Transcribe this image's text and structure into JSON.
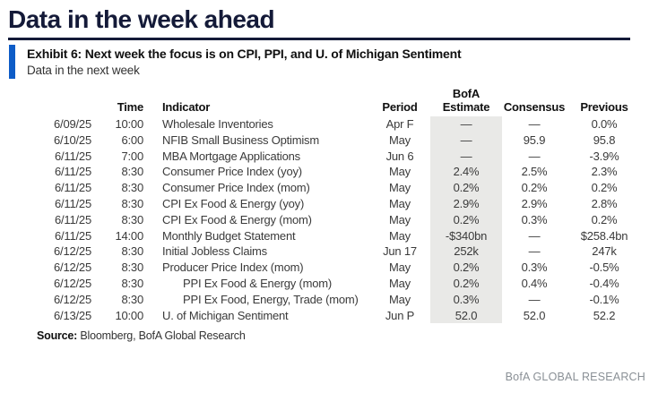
{
  "page": {
    "title": "Data in the week ahead",
    "brand_footer": "BofA GLOBAL RESEARCH"
  },
  "exhibit": {
    "title": "Exhibit 6: Next week the focus is on CPI, PPI, and U. of Michigan Sentiment",
    "subtitle": "Data in the next week"
  },
  "colors": {
    "title_navy": "#141a38",
    "accent_blue": "#0d5cc7",
    "estimate_column_bg": "#e9e9e7",
    "brand_gray": "#8a9096"
  },
  "table": {
    "headers": {
      "date": "",
      "time": "Time",
      "indicator": "Indicator",
      "period": "Period",
      "estimate_line1": "BofA",
      "estimate_line2": "Estimate",
      "consensus": "Consensus",
      "previous": "Previous"
    },
    "rows": [
      {
        "date": "6/09/25",
        "time": "10:00",
        "indicator": "Wholesale Inventories",
        "period": "Apr F",
        "estimate": "—",
        "consensus": "—",
        "previous": "0.0%",
        "indent": false
      },
      {
        "date": "6/10/25",
        "time": "6:00",
        "indicator": "NFIB Small Business Optimism",
        "period": "May",
        "estimate": "—",
        "consensus": "95.9",
        "previous": "95.8",
        "indent": false
      },
      {
        "date": "6/11/25",
        "time": "7:00",
        "indicator": "MBA Mortgage Applications",
        "period": "Jun 6",
        "estimate": "—",
        "consensus": "—",
        "previous": "-3.9%",
        "indent": false
      },
      {
        "date": "6/11/25",
        "time": "8:30",
        "indicator": "Consumer Price Index (yoy)",
        "period": "May",
        "estimate": "2.4%",
        "consensus": "2.5%",
        "previous": "2.3%",
        "indent": false
      },
      {
        "date": "6/11/25",
        "time": "8:30",
        "indicator": "Consumer Price Index (mom)",
        "period": "May",
        "estimate": "0.2%",
        "consensus": "0.2%",
        "previous": "0.2%",
        "indent": false
      },
      {
        "date": "6/11/25",
        "time": "8:30",
        "indicator": "CPI Ex Food & Energy (yoy)",
        "period": "May",
        "estimate": "2.9%",
        "consensus": "2.9%",
        "previous": "2.8%",
        "indent": false
      },
      {
        "date": "6/11/25",
        "time": "8:30",
        "indicator": "CPI Ex Food & Energy (mom)",
        "period": "May",
        "estimate": "0.2%",
        "consensus": "0.3%",
        "previous": "0.2%",
        "indent": false
      },
      {
        "date": "6/11/25",
        "time": "14:00",
        "indicator": "Monthly Budget Statement",
        "period": "May",
        "estimate": "-$340bn",
        "consensus": "—",
        "previous": "$258.4bn",
        "indent": false
      },
      {
        "date": "6/12/25",
        "time": "8:30",
        "indicator": "Initial Jobless Claims",
        "period": "Jun 17",
        "estimate": "252k",
        "consensus": "—",
        "previous": "247k",
        "indent": false
      },
      {
        "date": "6/12/25",
        "time": "8:30",
        "indicator": "Producer Price Index (mom)",
        "period": "May",
        "estimate": "0.2%",
        "consensus": "0.3%",
        "previous": "-0.5%",
        "indent": false
      },
      {
        "date": "6/12/25",
        "time": "8:30",
        "indicator": "PPI Ex Food & Energy (mom)",
        "period": "May",
        "estimate": "0.2%",
        "consensus": "0.4%",
        "previous": "-0.4%",
        "indent": true
      },
      {
        "date": "6/12/25",
        "time": "8:30",
        "indicator": "PPI Ex Food, Energy, Trade (mom)",
        "period": "May",
        "estimate": "0.3%",
        "consensus": "—",
        "previous": "-0.1%",
        "indent": true
      },
      {
        "date": "6/13/25",
        "time": "10:00",
        "indicator": "U. of Michigan Sentiment",
        "period": "Jun P",
        "estimate": "52.0",
        "consensus": "52.0",
        "previous": "52.2",
        "indent": false
      }
    ]
  },
  "footer": {
    "source_label": "Source:",
    "source_text": " Bloomberg, BofA Global Research"
  }
}
